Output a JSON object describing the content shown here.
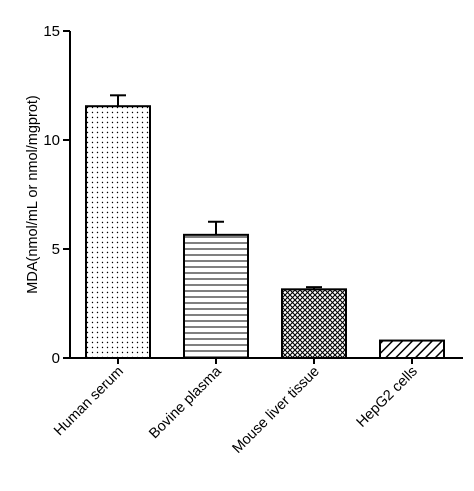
{
  "chart_data": {
    "type": "bar",
    "title": "",
    "xlabel": "",
    "ylabel": "MDA(nmol/mL or nmol/mgprot)",
    "ylim": [
      0,
      15
    ],
    "yticks": [
      0,
      5,
      10,
      15
    ],
    "grid": false,
    "categories": [
      "Human serum",
      "Bovine plasma",
      "Mouse liver tissue",
      "HepG2 cells"
    ],
    "values": [
      11.55,
      5.65,
      3.15,
      0.8
    ],
    "errors": [
      0.5,
      0.6,
      0.1,
      0
    ],
    "fill_patterns": [
      "dots",
      "horizontal-lines",
      "crosshatch",
      "diagonal-lines"
    ]
  }
}
